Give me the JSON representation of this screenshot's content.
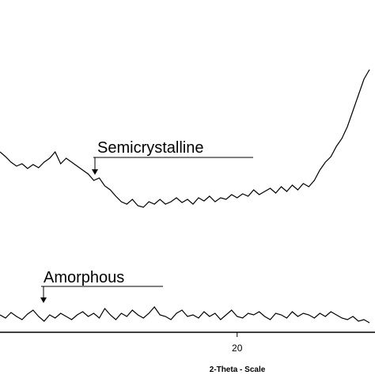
{
  "chart_data": {
    "type": "line",
    "xlabel": "2-Theta - Scale",
    "x": [
      15.7,
      15.8,
      15.9,
      16.0,
      16.1,
      16.2,
      16.3,
      16.4,
      16.5,
      16.6,
      16.7,
      16.8,
      16.9,
      17.0,
      17.1,
      17.2,
      17.3,
      17.4,
      17.5,
      17.6,
      17.7,
      17.8,
      17.9,
      18.0,
      18.1,
      18.2,
      18.3,
      18.4,
      18.5,
      18.6,
      18.7,
      18.8,
      18.9,
      19.0,
      19.1,
      19.2,
      19.3,
      19.4,
      19.5,
      19.6,
      19.7,
      19.8,
      19.9,
      20.0,
      20.1,
      20.2,
      20.3,
      20.4,
      20.5,
      20.6,
      20.7,
      20.8,
      20.9,
      21.0,
      21.1,
      21.2,
      21.3,
      21.4,
      21.5,
      21.6,
      21.7,
      21.8,
      21.9,
      22.0,
      22.1,
      22.2,
      22.3,
      22.4
    ],
    "series": [
      {
        "name": "Semicrystalline",
        "color": "#000000",
        "values": [
          282,
          276,
          269,
          264,
          267,
          261,
          266,
          262,
          269,
          274,
          282,
          267,
          274,
          269,
          264,
          259,
          254,
          246,
          249,
          239,
          234,
          226,
          219,
          216,
          222,
          214,
          212,
          219,
          216,
          222,
          216,
          219,
          224,
          218,
          222,
          216,
          224,
          220,
          226,
          219,
          224,
          222,
          228,
          224,
          229,
          226,
          234,
          228,
          232,
          236,
          230,
          238,
          232,
          240,
          234,
          242,
          238,
          246,
          259,
          269,
          276,
          289,
          299,
          314,
          334,
          354,
          374,
          386
        ]
      },
      {
        "name": "Amorphous",
        "color": "#000000",
        "values": [
          76,
          72,
          79,
          74,
          70,
          77,
          82,
          74,
          68,
          76,
          72,
          78,
          74,
          70,
          76,
          80,
          74,
          78,
          72,
          84,
          76,
          70,
          78,
          74,
          82,
          76,
          72,
          78,
          86,
          76,
          74,
          70,
          78,
          82,
          74,
          76,
          72,
          80,
          74,
          78,
          70,
          76,
          82,
          74,
          72,
          78,
          76,
          80,
          74,
          70,
          78,
          76,
          72,
          80,
          74,
          78,
          76,
          72,
          78,
          74,
          80,
          76,
          72,
          70,
          74,
          68,
          70,
          66
        ]
      }
    ],
    "xlim": [
      15.7,
      22.5
    ],
    "xticks": [
      20
    ],
    "ylim": [
      0,
      474
    ]
  }
}
